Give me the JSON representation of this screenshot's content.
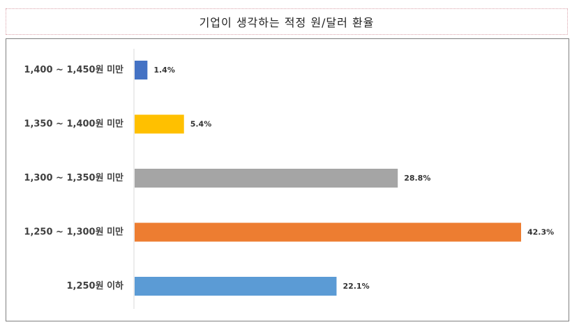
{
  "chart_data": {
    "type": "bar",
    "orientation": "horizontal",
    "title": "기업이 생각하는 적정 원/달러 환율",
    "categories": [
      "1,400 ~ 1,450원 미만",
      "1,350 ~ 1,400원 미만",
      "1,300 ~ 1,350원 미만",
      "1,250 ~ 1,300원 미만",
      "1,250원 이하"
    ],
    "values": [
      1.4,
      5.4,
      28.8,
      42.3,
      22.1
    ],
    "value_labels": [
      "1.4%",
      "5.4%",
      "28.8%",
      "42.3%",
      "22.1%"
    ],
    "colors": [
      "#4472C4",
      "#FFC000",
      "#A5A5A5",
      "#ED7D31",
      "#5B9BD5"
    ],
    "xlim": [
      0,
      42.3
    ],
    "grid": false,
    "legend": "none"
  }
}
